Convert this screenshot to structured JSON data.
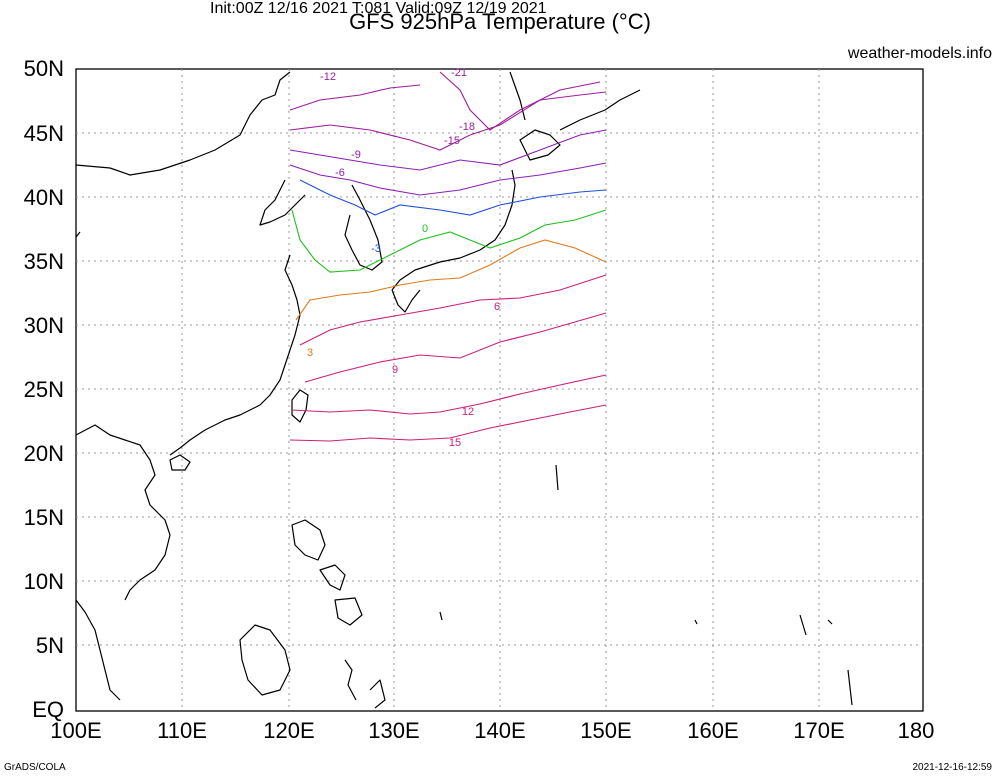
{
  "header": {
    "title": "GFS 925hPa Temperature (°C)",
    "subtitle": "Init:00Z 12/16 2021 T:081 Valid:09Z 12/19 2021",
    "site": "weather-models.info"
  },
  "footer": {
    "software": "GrADS/COLA",
    "timestamp": "2021-12-16-12:59"
  },
  "map": {
    "lon_range": [
      100,
      180
    ],
    "lat_range": [
      0,
      50
    ],
    "data_lon_range": [
      120,
      150
    ],
    "gridlines": "dotted",
    "x_ticks": [
      "100E",
      "110E",
      "120E",
      "130E",
      "140E",
      "150E",
      "160E",
      "170E",
      "180"
    ],
    "y_ticks": [
      "EQ",
      "5N",
      "10N",
      "15N",
      "20N",
      "25N",
      "30N",
      "35N",
      "40N",
      "45N",
      "50N"
    ]
  },
  "contour_colors": {
    "-21": "#9b1f9b",
    "-18": "#9b1f9b",
    "-15": "#9b1f9b",
    "-12": "#9b1f9b",
    "-9": "#8a1fb0",
    "-6": "#8a1fb0",
    "-3": "#1f4fd6",
    "0": "#1fbf1f",
    "3": "#e07a1f",
    "6": "#cc1f7a",
    "9": "#cc1f7a",
    "12": "#cc1f7a",
    "15": "#cc1f7a"
  },
  "contour_labels": [
    "-21",
    "-18",
    "-15",
    "-12",
    "-9",
    "-6",
    "-3",
    "0",
    "3",
    "6",
    "9",
    "12",
    "15"
  ]
}
